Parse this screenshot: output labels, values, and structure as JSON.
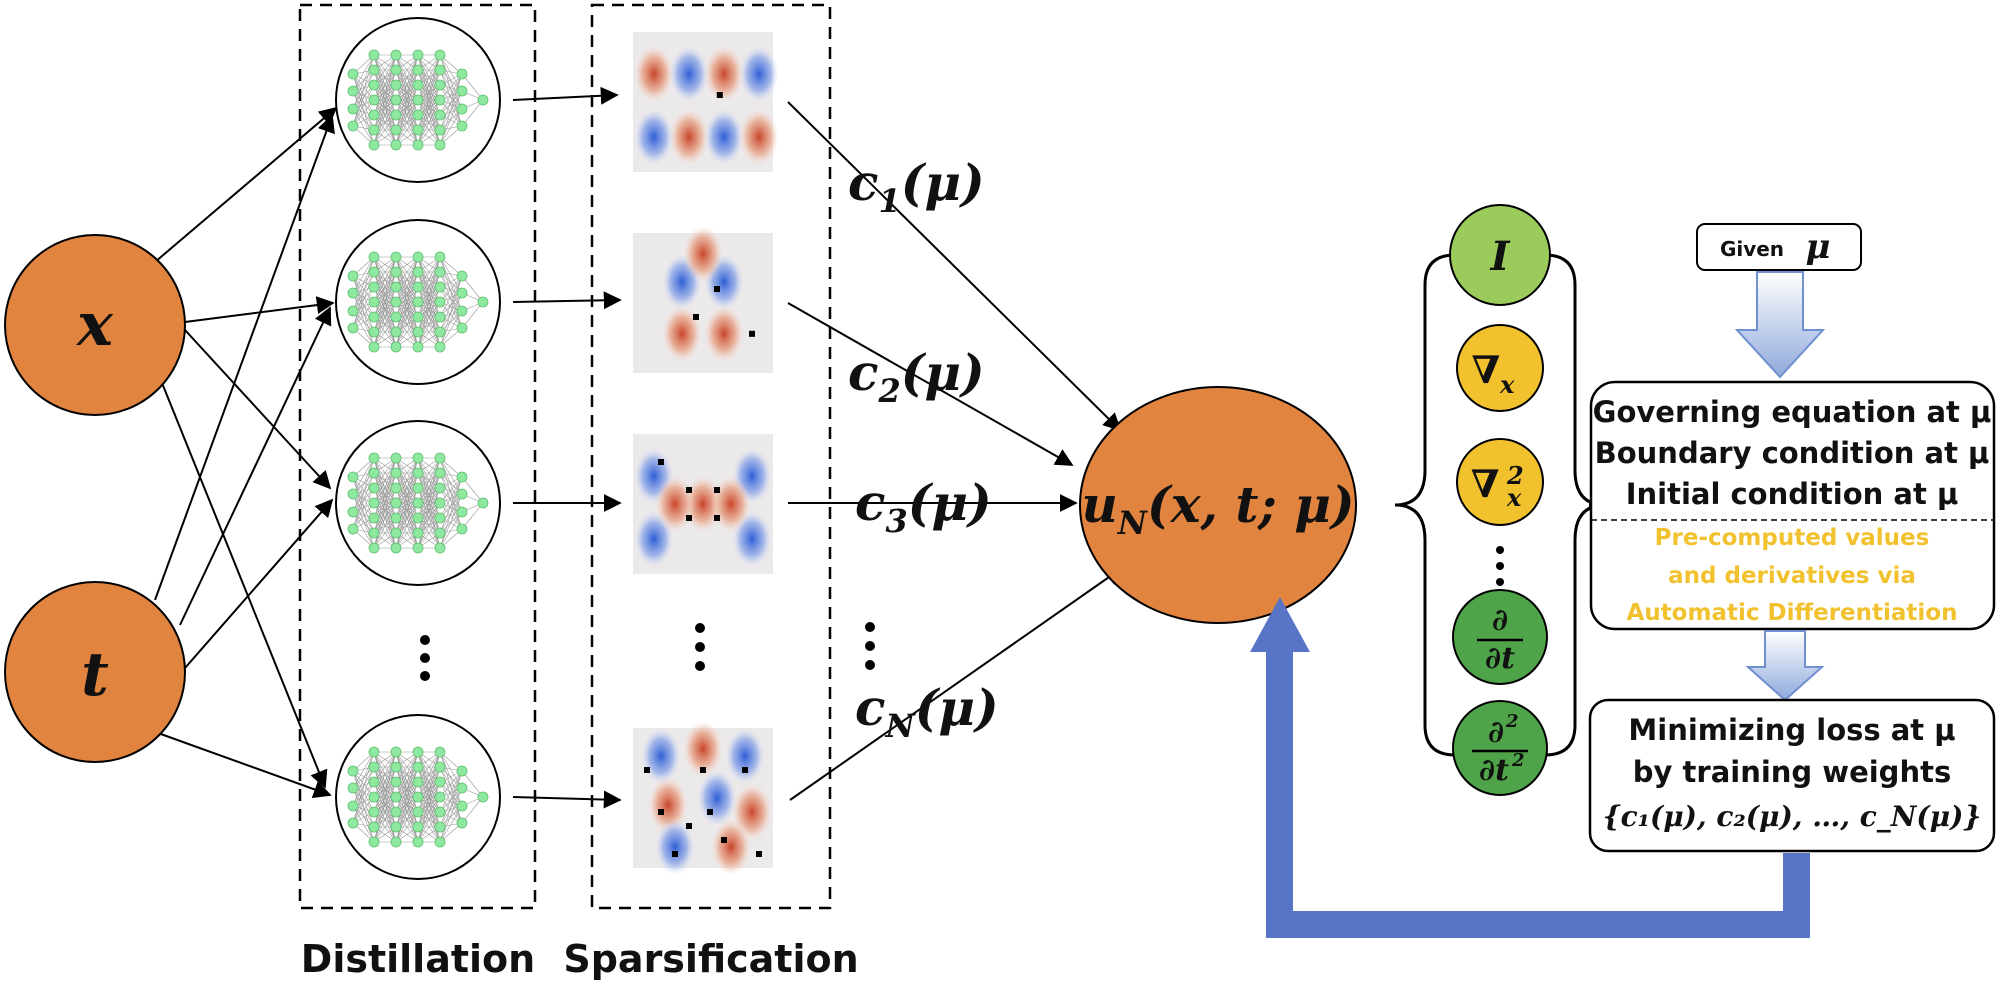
{
  "inputs": {
    "x": "x",
    "t": "t"
  },
  "section_labels": {
    "distillation": "Distillation",
    "sparsification": "Sparsification"
  },
  "coefficients": {
    "c1": "c",
    "c1_sub": "1",
    "c1_arg": "(μ)",
    "c2": "c",
    "c2_sub": "2",
    "c2_arg": "(μ)",
    "c3": "c",
    "c3_sub": "3",
    "c3_arg": "(μ)",
    "cN": "c",
    "cN_sub": "N",
    "cN_arg": "(μ)"
  },
  "output": {
    "u": "u",
    "sub": "N",
    "args": "(x, t; μ)"
  },
  "operators": {
    "identity": "I",
    "nabla": "∇",
    "nabla_sub": "x",
    "nabla2": "∇",
    "nabla2_sub": "x",
    "nabla2_sup": "2",
    "ddt_num": "∂",
    "ddt_den": "∂t",
    "d2dt2_num": "∂",
    "d2dt2_num_sup": "2",
    "d2dt2_den": "∂t",
    "d2dt2_den_sup": "2"
  },
  "flow": {
    "given_label": "Given",
    "given_mu": "μ",
    "box1_lines": [
      "Governing equation at μ",
      "Boundary condition at μ",
      "Initial condition at μ"
    ],
    "box1_highlight": [
      "Pre-computed values",
      "and derivatives via",
      "Automatic Differentiation"
    ],
    "box2_lines": [
      "Minimizing loss at μ",
      "by training weights",
      "{c₁(μ), c₂(μ), …, c_N(μ)}"
    ]
  },
  "colors": {
    "orange": "#E0843F",
    "operator_green_light": "#9BCB5A",
    "operator_yellow": "#F2C12E",
    "operator_green_dark": "#4FA348",
    "feedback_arrow": "#5874C6",
    "node_green": "#8FE8A0",
    "highlight_text": "#F2C12E"
  }
}
